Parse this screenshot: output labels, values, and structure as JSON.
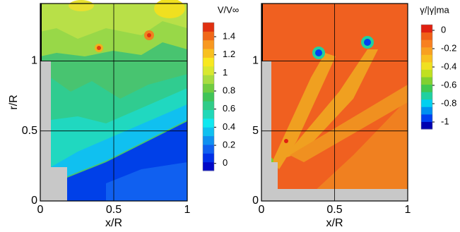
{
  "chart_data": [
    {
      "type": "contour",
      "xlabel": "x/R",
      "ylabel": "r/R",
      "xlim": [
        0,
        1
      ],
      "ylim": [
        0,
        1.41
      ],
      "xticks": [
        0,
        0.5,
        1
      ],
      "yticks": [
        0,
        0.5,
        1
      ],
      "grid": true,
      "colorbar": {
        "title": "V/V∞",
        "lim": [
          -0.08,
          1.556
        ],
        "ticks": [
          0,
          0.2,
          0.4,
          0.6,
          0.8,
          1,
          1.2,
          1.4
        ],
        "colors": [
          "#0008c8",
          "#0030e8",
          "#1060f0",
          "#1090f0",
          "#10c0f0",
          "#10e8f0",
          "#20d8b8",
          "#30cc88",
          "#40c458",
          "#70cc40",
          "#a8dc40",
          "#d8e830",
          "#f8e820",
          "#f8c020",
          "#f89820",
          "#f06818",
          "#e03010"
        ]
      }
    },
    {
      "type": "contour",
      "xlabel": "x/R",
      "xlim": [
        0,
        1
      ],
      "ylim": [
        0,
        1.41
      ],
      "xticks": [
        0,
        0.5,
        1
      ],
      "yticks": [
        0,
        {
          "value": 0.5,
          "label": "5"
        },
        1
      ],
      "grid": true,
      "colorbar": {
        "title": "γ/|γ|ma",
        "lim": [
          -1.077,
          0.0615
        ],
        "ticks": [
          0,
          -0.2,
          -0.4,
          -0.6,
          -0.8,
          -1
        ],
        "colors": [
          "#0000b0",
          "#0040f0",
          "#0090f0",
          "#00d0f0",
          "#20d0a0",
          "#40c850",
          "#80d030",
          "#c0e020",
          "#f0e020",
          "#f8c020",
          "#f8a020",
          "#f88020",
          "#f06018",
          "#e02010"
        ]
      }
    }
  ]
}
